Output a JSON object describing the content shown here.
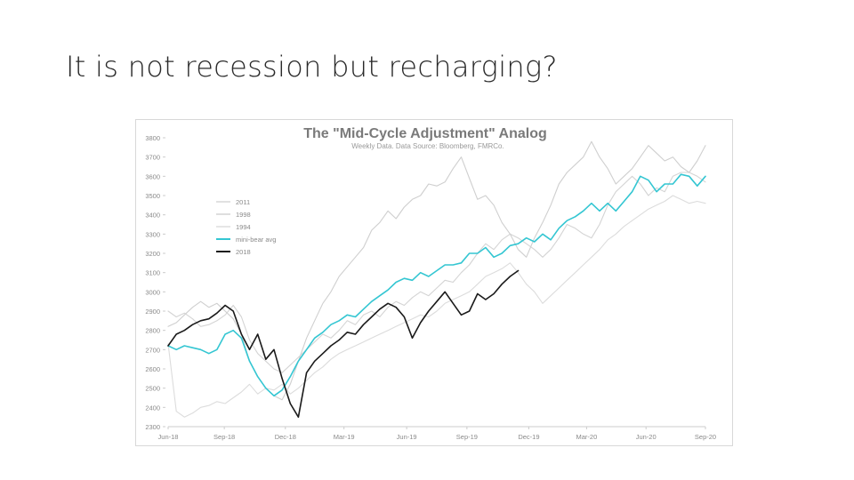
{
  "slide": {
    "title": "It is not recession but recharging?"
  },
  "chart_data": {
    "type": "line",
    "title": "The \"Mid-Cycle Adjustment\" Analog",
    "subtitle": "Weekly Data. Data Source: Bloomberg, FMRCo.",
    "xlabel": "",
    "ylabel": "",
    "ylim": [
      2300,
      3800
    ],
    "yticks": [
      2300,
      2400,
      2500,
      2600,
      2700,
      2800,
      2900,
      3000,
      3100,
      3200,
      3300,
      3400,
      3500,
      3600,
      3700,
      3800
    ],
    "xlim": [
      0,
      66
    ],
    "xticks": [
      {
        "label": "Jun-18",
        "x": 0
      },
      {
        "label": "Sep-18",
        "x": 6.9
      },
      {
        "label": "Dec-18",
        "x": 14.4
      },
      {
        "label": "Mar-19",
        "x": 21.6
      },
      {
        "label": "Jun-19",
        "x": 29.3
      },
      {
        "label": "Sep-19",
        "x": 36.7
      },
      {
        "label": "Dec-19",
        "x": 44.3
      },
      {
        "label": "Mar-20",
        "x": 51.4
      },
      {
        "label": "Jun-20",
        "x": 58.7
      },
      {
        "label": "Sep-20",
        "x": 66
      }
    ],
    "legend_position": "top-left",
    "grid": false,
    "series": [
      {
        "name": "2011",
        "color": "#d4d4d4",
        "points": [
          [
            0,
            2900
          ],
          [
            1,
            2870
          ],
          [
            2,
            2890
          ],
          [
            3,
            2860
          ],
          [
            4,
            2820
          ],
          [
            5,
            2830
          ],
          [
            6,
            2850
          ],
          [
            7,
            2880
          ],
          [
            8,
            2930
          ],
          [
            9,
            2870
          ],
          [
            10,
            2750
          ],
          [
            11,
            2680
          ],
          [
            12,
            2640
          ],
          [
            13,
            2600
          ],
          [
            14,
            2580
          ],
          [
            15,
            2620
          ],
          [
            16,
            2660
          ],
          [
            17,
            2700
          ],
          [
            18,
            2740
          ],
          [
            19,
            2780
          ],
          [
            20,
            2760
          ],
          [
            21,
            2800
          ],
          [
            22,
            2850
          ],
          [
            23,
            2830
          ],
          [
            24,
            2880
          ],
          [
            25,
            2900
          ],
          [
            26,
            2870
          ],
          [
            27,
            2920
          ],
          [
            28,
            2950
          ],
          [
            29,
            2930
          ],
          [
            30,
            2970
          ],
          [
            31,
            3000
          ],
          [
            32,
            2980
          ],
          [
            33,
            3020
          ],
          [
            34,
            3060
          ],
          [
            35,
            3050
          ],
          [
            36,
            3100
          ],
          [
            37,
            3140
          ],
          [
            38,
            3200
          ],
          [
            39,
            3250
          ],
          [
            40,
            3220
          ],
          [
            41,
            3270
          ],
          [
            42,
            3300
          ],
          [
            43,
            3280
          ],
          [
            44,
            3250
          ],
          [
            45,
            3220
          ],
          [
            46,
            3180
          ],
          [
            47,
            3220
          ],
          [
            48,
            3280
          ],
          [
            49,
            3350
          ],
          [
            50,
            3330
          ],
          [
            51,
            3300
          ],
          [
            52,
            3280
          ],
          [
            53,
            3350
          ],
          [
            54,
            3450
          ],
          [
            55,
            3520
          ],
          [
            56,
            3560
          ],
          [
            57,
            3600
          ],
          [
            58,
            3560
          ],
          [
            59,
            3500
          ],
          [
            60,
            3540
          ],
          [
            61,
            3520
          ],
          [
            62,
            3600
          ],
          [
            63,
            3620
          ],
          [
            64,
            3620
          ],
          [
            65,
            3600
          ],
          [
            66,
            3570
          ]
        ]
      },
      {
        "name": "1998",
        "color": "#cfcfcf",
        "points": [
          [
            0,
            2820
          ],
          [
            1,
            2840
          ],
          [
            2,
            2880
          ],
          [
            3,
            2920
          ],
          [
            4,
            2950
          ],
          [
            5,
            2920
          ],
          [
            6,
            2940
          ],
          [
            7,
            2900
          ],
          [
            8,
            2860
          ],
          [
            9,
            2780
          ],
          [
            10,
            2640
          ],
          [
            11,
            2560
          ],
          [
            12,
            2500
          ],
          [
            13,
            2460
          ],
          [
            14,
            2440
          ],
          [
            15,
            2520
          ],
          [
            16,
            2640
          ],
          [
            17,
            2760
          ],
          [
            18,
            2850
          ],
          [
            19,
            2940
          ],
          [
            20,
            3000
          ],
          [
            21,
            3080
          ],
          [
            22,
            3130
          ],
          [
            23,
            3180
          ],
          [
            24,
            3230
          ],
          [
            25,
            3320
          ],
          [
            26,
            3360
          ],
          [
            27,
            3420
          ],
          [
            28,
            3380
          ],
          [
            29,
            3440
          ],
          [
            30,
            3480
          ],
          [
            31,
            3500
          ],
          [
            32,
            3560
          ],
          [
            33,
            3550
          ],
          [
            34,
            3570
          ],
          [
            35,
            3640
          ],
          [
            36,
            3700
          ],
          [
            37,
            3590
          ],
          [
            38,
            3480
          ],
          [
            39,
            3500
          ],
          [
            40,
            3450
          ],
          [
            41,
            3360
          ],
          [
            42,
            3300
          ],
          [
            43,
            3220
          ],
          [
            44,
            3180
          ],
          [
            45,
            3280
          ],
          [
            46,
            3360
          ],
          [
            47,
            3450
          ],
          [
            48,
            3560
          ],
          [
            49,
            3620
          ],
          [
            50,
            3660
          ],
          [
            51,
            3700
          ],
          [
            52,
            3780
          ],
          [
            53,
            3700
          ],
          [
            54,
            3640
          ],
          [
            55,
            3560
          ],
          [
            56,
            3600
          ],
          [
            57,
            3640
          ],
          [
            58,
            3700
          ],
          [
            59,
            3760
          ],
          [
            60,
            3720
          ],
          [
            61,
            3680
          ],
          [
            62,
            3700
          ],
          [
            63,
            3650
          ],
          [
            64,
            3620
          ],
          [
            65,
            3680
          ],
          [
            66,
            3760
          ]
        ]
      },
      {
        "name": "1994",
        "color": "#dcdcdc",
        "points": [
          [
            0,
            2730
          ],
          [
            1,
            2380
          ],
          [
            2,
            2350
          ],
          [
            3,
            2370
          ],
          [
            4,
            2400
          ],
          [
            5,
            2410
          ],
          [
            6,
            2430
          ],
          [
            7,
            2420
          ],
          [
            8,
            2450
          ],
          [
            9,
            2480
          ],
          [
            10,
            2520
          ],
          [
            11,
            2470
          ],
          [
            12,
            2500
          ],
          [
            13,
            2490
          ],
          [
            14,
            2520
          ],
          [
            15,
            2470
          ],
          [
            16,
            2500
          ],
          [
            17,
            2540
          ],
          [
            18,
            2580
          ],
          [
            19,
            2610
          ],
          [
            20,
            2650
          ],
          [
            21,
            2680
          ],
          [
            22,
            2700
          ],
          [
            23,
            2720
          ],
          [
            24,
            2740
          ],
          [
            25,
            2760
          ],
          [
            26,
            2780
          ],
          [
            27,
            2800
          ],
          [
            28,
            2820
          ],
          [
            29,
            2840
          ],
          [
            30,
            2860
          ],
          [
            31,
            2880
          ],
          [
            32,
            2870
          ],
          [
            33,
            2900
          ],
          [
            34,
            2940
          ],
          [
            35,
            2960
          ],
          [
            36,
            2980
          ],
          [
            37,
            3000
          ],
          [
            38,
            3040
          ],
          [
            39,
            3080
          ],
          [
            40,
            3100
          ],
          [
            41,
            3120
          ],
          [
            42,
            3150
          ],
          [
            43,
            3100
          ],
          [
            44,
            3040
          ],
          [
            45,
            3000
          ],
          [
            46,
            2940
          ],
          [
            47,
            2980
          ],
          [
            48,
            3020
          ],
          [
            49,
            3060
          ],
          [
            50,
            3100
          ],
          [
            51,
            3140
          ],
          [
            52,
            3180
          ],
          [
            53,
            3220
          ],
          [
            54,
            3270
          ],
          [
            55,
            3300
          ],
          [
            56,
            3340
          ],
          [
            57,
            3370
          ],
          [
            58,
            3400
          ],
          [
            59,
            3430
          ],
          [
            60,
            3450
          ],
          [
            61,
            3470
          ],
          [
            62,
            3500
          ],
          [
            63,
            3480
          ],
          [
            64,
            3460
          ],
          [
            65,
            3470
          ],
          [
            66,
            3460
          ]
        ]
      },
      {
        "name": "mini-bear avg",
        "color": "#34c6d2",
        "points": [
          [
            0,
            2720
          ],
          [
            1,
            2700
          ],
          [
            2,
            2720
          ],
          [
            3,
            2710
          ],
          [
            4,
            2700
          ],
          [
            5,
            2680
          ],
          [
            6,
            2700
          ],
          [
            7,
            2780
          ],
          [
            8,
            2800
          ],
          [
            9,
            2760
          ],
          [
            10,
            2640
          ],
          [
            11,
            2560
          ],
          [
            12,
            2500
          ],
          [
            13,
            2460
          ],
          [
            14,
            2490
          ],
          [
            15,
            2560
          ],
          [
            16,
            2640
          ],
          [
            17,
            2700
          ],
          [
            18,
            2760
          ],
          [
            19,
            2790
          ],
          [
            20,
            2830
          ],
          [
            21,
            2850
          ],
          [
            22,
            2880
          ],
          [
            23,
            2870
          ],
          [
            24,
            2910
          ],
          [
            25,
            2950
          ],
          [
            26,
            2980
          ],
          [
            27,
            3010
          ],
          [
            28,
            3050
          ],
          [
            29,
            3070
          ],
          [
            30,
            3060
          ],
          [
            31,
            3100
          ],
          [
            32,
            3080
          ],
          [
            33,
            3110
          ],
          [
            34,
            3140
          ],
          [
            35,
            3140
          ],
          [
            36,
            3150
          ],
          [
            37,
            3200
          ],
          [
            38,
            3200
          ],
          [
            39,
            3230
          ],
          [
            40,
            3180
          ],
          [
            41,
            3200
          ],
          [
            42,
            3240
          ],
          [
            43,
            3250
          ],
          [
            44,
            3280
          ],
          [
            45,
            3260
          ],
          [
            46,
            3300
          ],
          [
            47,
            3270
          ],
          [
            48,
            3330
          ],
          [
            49,
            3370
          ],
          [
            50,
            3390
          ],
          [
            51,
            3420
          ],
          [
            52,
            3460
          ],
          [
            53,
            3420
          ],
          [
            54,
            3460
          ],
          [
            55,
            3420
          ],
          [
            56,
            3470
          ],
          [
            57,
            3520
          ],
          [
            58,
            3600
          ],
          [
            59,
            3580
          ],
          [
            60,
            3520
          ],
          [
            61,
            3560
          ],
          [
            62,
            3560
          ],
          [
            63,
            3610
          ],
          [
            64,
            3600
          ],
          [
            65,
            3550
          ],
          [
            66,
            3600
          ]
        ]
      },
      {
        "name": "2018",
        "color": "#1a1a1a",
        "points": [
          [
            0,
            2720
          ],
          [
            1,
            2780
          ],
          [
            2,
            2800
          ],
          [
            3,
            2830
          ],
          [
            4,
            2850
          ],
          [
            5,
            2860
          ],
          [
            6,
            2890
          ],
          [
            7,
            2930
          ],
          [
            8,
            2900
          ],
          [
            9,
            2780
          ],
          [
            10,
            2700
          ],
          [
            11,
            2780
          ],
          [
            12,
            2650
          ],
          [
            13,
            2700
          ],
          [
            14,
            2550
          ],
          [
            15,
            2420
          ],
          [
            16,
            2350
          ],
          [
            17,
            2580
          ],
          [
            18,
            2640
          ],
          [
            19,
            2680
          ],
          [
            20,
            2720
          ],
          [
            21,
            2750
          ],
          [
            22,
            2790
          ],
          [
            23,
            2780
          ],
          [
            24,
            2830
          ],
          [
            25,
            2870
          ],
          [
            26,
            2910
          ],
          [
            27,
            2940
          ],
          [
            28,
            2920
          ],
          [
            29,
            2870
          ],
          [
            30,
            2760
          ],
          [
            31,
            2840
          ],
          [
            32,
            2900
          ],
          [
            33,
            2950
          ],
          [
            34,
            3000
          ],
          [
            35,
            2940
          ],
          [
            36,
            2880
          ],
          [
            37,
            2900
          ],
          [
            38,
            2990
          ],
          [
            39,
            2960
          ],
          [
            40,
            2990
          ],
          [
            41,
            3040
          ],
          [
            42,
            3080
          ],
          [
            43,
            3110
          ]
        ]
      }
    ]
  }
}
